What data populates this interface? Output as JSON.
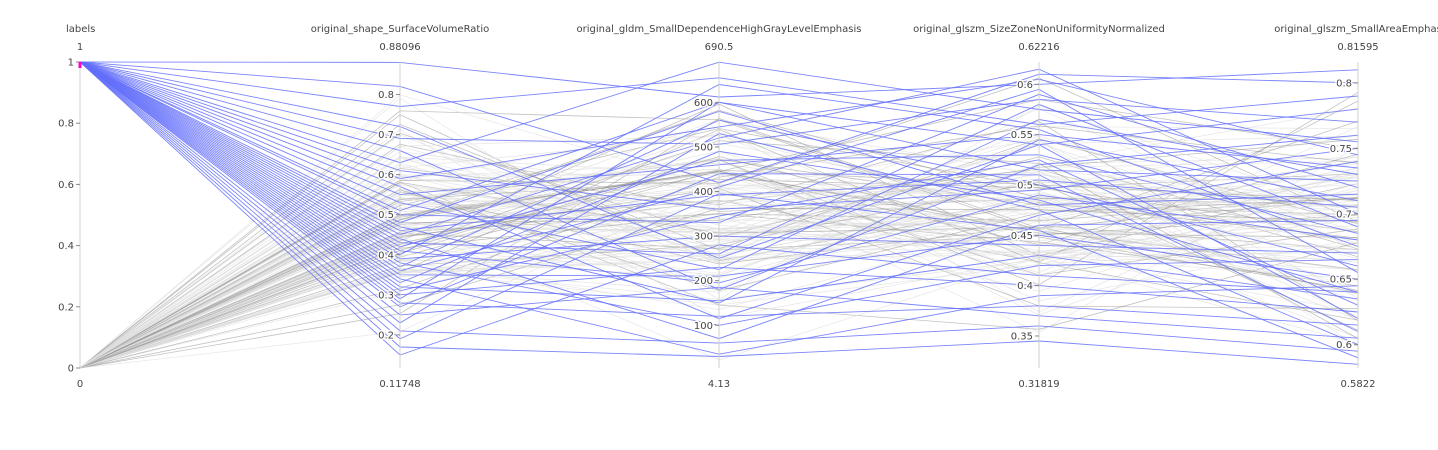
{
  "chart_data": {
    "type": "parcoords",
    "line_colors": {
      "highlight": "#636efa",
      "context_light": "#e0e0e0",
      "context_dark": "#909090",
      "brush": "#ff00c8"
    },
    "dimensions": [
      {
        "label": "labels",
        "range": [
          0,
          1
        ],
        "top_text": "1",
        "bottom_text": "0",
        "ticks": [
          {
            "v": 1,
            "t": "1"
          },
          {
            "v": 0.8,
            "t": "0.8"
          },
          {
            "v": 0.6,
            "t": "0.6"
          },
          {
            "v": 0.4,
            "t": "0.4"
          },
          {
            "v": 0.2,
            "t": "0.2"
          },
          {
            "v": 0,
            "t": "0"
          }
        ],
        "brush": [
          0.985,
          1
        ]
      },
      {
        "label": "original_shape_SurfaceVolumeRatio",
        "range": [
          0.11748,
          0.88096
        ],
        "top_text": "0.88096",
        "bottom_text": "0.11748",
        "ticks": [
          {
            "v": 0.8,
            "t": "0.8"
          },
          {
            "v": 0.7,
            "t": "0.7"
          },
          {
            "v": 0.6,
            "t": "0.6"
          },
          {
            "v": 0.5,
            "t": "0.5"
          },
          {
            "v": 0.4,
            "t": "0.4"
          },
          {
            "v": 0.3,
            "t": "0.3"
          },
          {
            "v": 0.2,
            "t": "0.2"
          }
        ]
      },
      {
        "label": "original_gldm_SmallDependenceHighGrayLevelEmphasis",
        "range": [
          4.13,
          690.5
        ],
        "top_text": "690.5",
        "bottom_text": "4.13",
        "ticks": [
          {
            "v": 600,
            "t": "600"
          },
          {
            "v": 500,
            "t": "500"
          },
          {
            "v": 400,
            "t": "400"
          },
          {
            "v": 300,
            "t": "300"
          },
          {
            "v": 200,
            "t": "200"
          },
          {
            "v": 100,
            "t": "100"
          }
        ]
      },
      {
        "label": "original_glszm_SizeZoneNonUniformityNormalized",
        "range": [
          0.31819,
          0.62216
        ],
        "top_text": "0.62216",
        "bottom_text": "0.31819",
        "ticks": [
          {
            "v": 0.6,
            "t": "0.6"
          },
          {
            "v": 0.55,
            "t": "0.55"
          },
          {
            "v": 0.5,
            "t": "0.5"
          },
          {
            "v": 0.45,
            "t": "0.45"
          },
          {
            "v": 0.4,
            "t": "0.4"
          },
          {
            "v": 0.35,
            "t": "0.35"
          }
        ]
      },
      {
        "label": "original_glszm_SmallAreaEmphas",
        "range": [
          0.5822,
          0.81595
        ],
        "top_text": "0.81595",
        "bottom_text": "0.5822",
        "ticks": [
          {
            "v": 0.8,
            "t": "0.8"
          },
          {
            "v": 0.75,
            "t": "0.75"
          },
          {
            "v": 0.7,
            "t": "0.7"
          },
          {
            "v": 0.65,
            "t": "0.65"
          },
          {
            "v": 0.6,
            "t": "0.6"
          }
        ]
      }
    ],
    "highlighted_records": [
      [
        1,
        0.88,
        612,
        0.6,
        0.81
      ],
      [
        1,
        0.82,
        420,
        0.61,
        0.8
      ],
      [
        1,
        0.77,
        655,
        0.56,
        0.79
      ],
      [
        1,
        0.72,
        250,
        0.54,
        0.78
      ],
      [
        1,
        0.69,
        506,
        0.585,
        0.77
      ],
      [
        1,
        0.66,
        180,
        0.52,
        0.76
      ],
      [
        1,
        0.63,
        690,
        0.575,
        0.755
      ],
      [
        1,
        0.61,
        360,
        0.495,
        0.75
      ],
      [
        1,
        0.59,
        545,
        0.605,
        0.745
      ],
      [
        1,
        0.57,
        115,
        0.47,
        0.74
      ],
      [
        1,
        0.55,
        460,
        0.55,
        0.735
      ],
      [
        1,
        0.53,
        225,
        0.565,
        0.73
      ],
      [
        1,
        0.51,
        600,
        0.515,
        0.725
      ],
      [
        1,
        0.5,
        330,
        0.59,
        0.72
      ],
      [
        1,
        0.48,
        580,
        0.48,
        0.715
      ],
      [
        1,
        0.47,
        150,
        0.545,
        0.71
      ],
      [
        1,
        0.46,
        392,
        0.505,
        0.705
      ],
      [
        1,
        0.45,
        520,
        0.615,
        0.7
      ],
      [
        1,
        0.44,
        70,
        0.46,
        0.695
      ],
      [
        1,
        0.43,
        260,
        0.58,
        0.69
      ],
      [
        1,
        0.42,
        470,
        0.53,
        0.685
      ],
      [
        1,
        0.41,
        195,
        0.49,
        0.68
      ],
      [
        1,
        0.4,
        640,
        0.555,
        0.675
      ],
      [
        1,
        0.39,
        300,
        0.44,
        0.67
      ],
      [
        1,
        0.38,
        100,
        0.42,
        0.665
      ],
      [
        1,
        0.37,
        560,
        0.5,
        0.66
      ],
      [
        1,
        0.36,
        410,
        0.595,
        0.655
      ],
      [
        1,
        0.35,
        210,
        0.45,
        0.65
      ],
      [
        1,
        0.34,
        35,
        0.39,
        0.645
      ],
      [
        1,
        0.33,
        490,
        0.485,
        0.64
      ],
      [
        1,
        0.32,
        155,
        0.43,
        0.635
      ],
      [
        1,
        0.31,
        345,
        0.525,
        0.63
      ],
      [
        1,
        0.3,
        230,
        0.4,
        0.625
      ],
      [
        1,
        0.29,
        600,
        0.54,
        0.62
      ],
      [
        1,
        0.28,
        120,
        0.38,
        0.615
      ],
      [
        1,
        0.27,
        440,
        0.51,
        0.61
      ],
      [
        1,
        0.25,
        185,
        0.37,
        0.605
      ],
      [
        1,
        0.23,
        530,
        0.475,
        0.6
      ],
      [
        1,
        0.21,
        60,
        0.36,
        0.595
      ],
      [
        1,
        0.19,
        395,
        0.455,
        0.59
      ],
      [
        1,
        0.17,
        30,
        0.345,
        0.585
      ],
      [
        1,
        0.15,
        280,
        0.41,
        0.64
      ]
    ],
    "context_count": 110
  }
}
